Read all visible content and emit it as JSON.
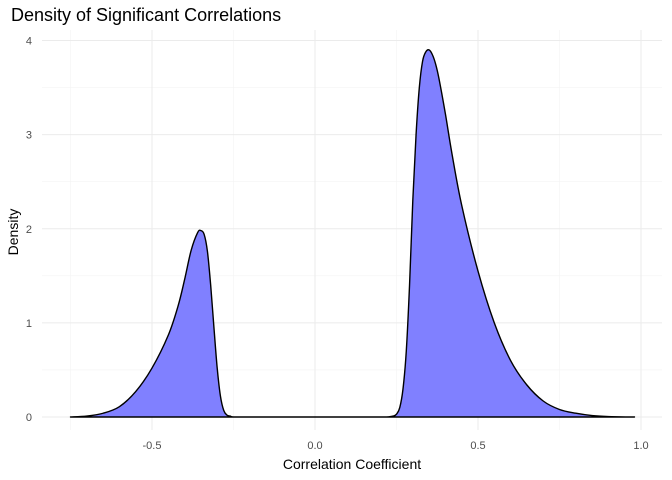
{
  "chart_data": {
    "type": "area",
    "title": "Density of Significant Correlations",
    "xlabel": "Correlation Coefficient",
    "ylabel": "Density",
    "xlim": [
      -0.8,
      1.0
    ],
    "ylim": [
      0,
      4.0
    ],
    "x_ticks": [
      -0.5,
      0.0,
      0.5,
      1.0
    ],
    "x_tick_labels": [
      "-0.5",
      "0.0",
      "0.5",
      "1.0"
    ],
    "y_ticks": [
      0,
      1,
      2,
      3,
      4
    ],
    "y_tick_labels": [
      "0",
      "1",
      "2",
      "3",
      "4"
    ],
    "grid": true,
    "fill_color": "#8080ff",
    "line_color": "#000000",
    "series": [
      {
        "x": [
          -0.75,
          -0.7,
          -0.65,
          -0.6,
          -0.55,
          -0.5,
          -0.45,
          -0.42,
          -0.4,
          -0.38,
          -0.36,
          -0.35,
          -0.34,
          -0.33,
          -0.32,
          -0.31,
          -0.3,
          -0.29,
          -0.28,
          -0.27,
          -0.26,
          -0.25,
          -0.2,
          -0.1,
          0.0,
          0.1,
          0.2,
          0.22,
          0.24,
          0.25,
          0.26,
          0.27,
          0.28,
          0.29,
          0.3,
          0.31,
          0.32,
          0.33,
          0.34,
          0.35,
          0.36,
          0.37,
          0.38,
          0.4,
          0.42,
          0.45,
          0.5,
          0.55,
          0.6,
          0.65,
          0.7,
          0.75,
          0.8,
          0.85,
          0.9,
          0.98
        ],
        "values": [
          0.0,
          0.01,
          0.04,
          0.11,
          0.27,
          0.52,
          0.87,
          1.18,
          1.46,
          1.77,
          1.96,
          1.98,
          1.94,
          1.76,
          1.4,
          0.95,
          0.52,
          0.22,
          0.07,
          0.02,
          0.01,
          0.0,
          0.0,
          0.0,
          0.0,
          0.0,
          0.0,
          0.0,
          0.01,
          0.03,
          0.1,
          0.3,
          0.7,
          1.4,
          2.3,
          3.0,
          3.5,
          3.78,
          3.88,
          3.9,
          3.85,
          3.75,
          3.6,
          3.22,
          2.8,
          2.25,
          1.55,
          1.0,
          0.6,
          0.34,
          0.17,
          0.08,
          0.04,
          0.015,
          0.005,
          0.0
        ]
      }
    ]
  }
}
